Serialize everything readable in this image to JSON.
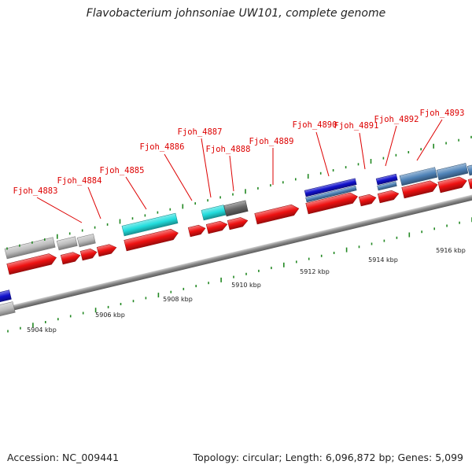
{
  "title": "Flavobacterium johnsoniae UW101, complete genome",
  "accession_label": "Accession: NC_009441",
  "summary_label": "Topology: circular; Length: 6,096,872 bp; Genes: 5,099",
  "colors": {
    "gene_label": "#dd0000",
    "cds": "#ee1111",
    "gray": "#bdbdbd",
    "cyan": "#22dddd",
    "dark": "#666666",
    "blue": "#1111cc",
    "steel": "#4f83b8",
    "tick": "#228822",
    "backbone": "#888888"
  },
  "gene_labels": [
    "Fjoh_4883",
    "Fjoh_4884",
    "Fjoh_4885",
    "Fjoh_4886",
    "Fjoh_4887",
    "Fjoh_4888",
    "Fjoh_4889",
    "Fjoh_4890",
    "Fjoh_4891",
    "Fjoh_4892",
    "Fjoh_4893"
  ],
  "axis_labels": [
    "5904 kbp",
    "5906 kbp",
    "5908 kbp",
    "5910 kbp",
    "5912 kbp",
    "5914 kbp",
    "5916 kbp"
  ]
}
